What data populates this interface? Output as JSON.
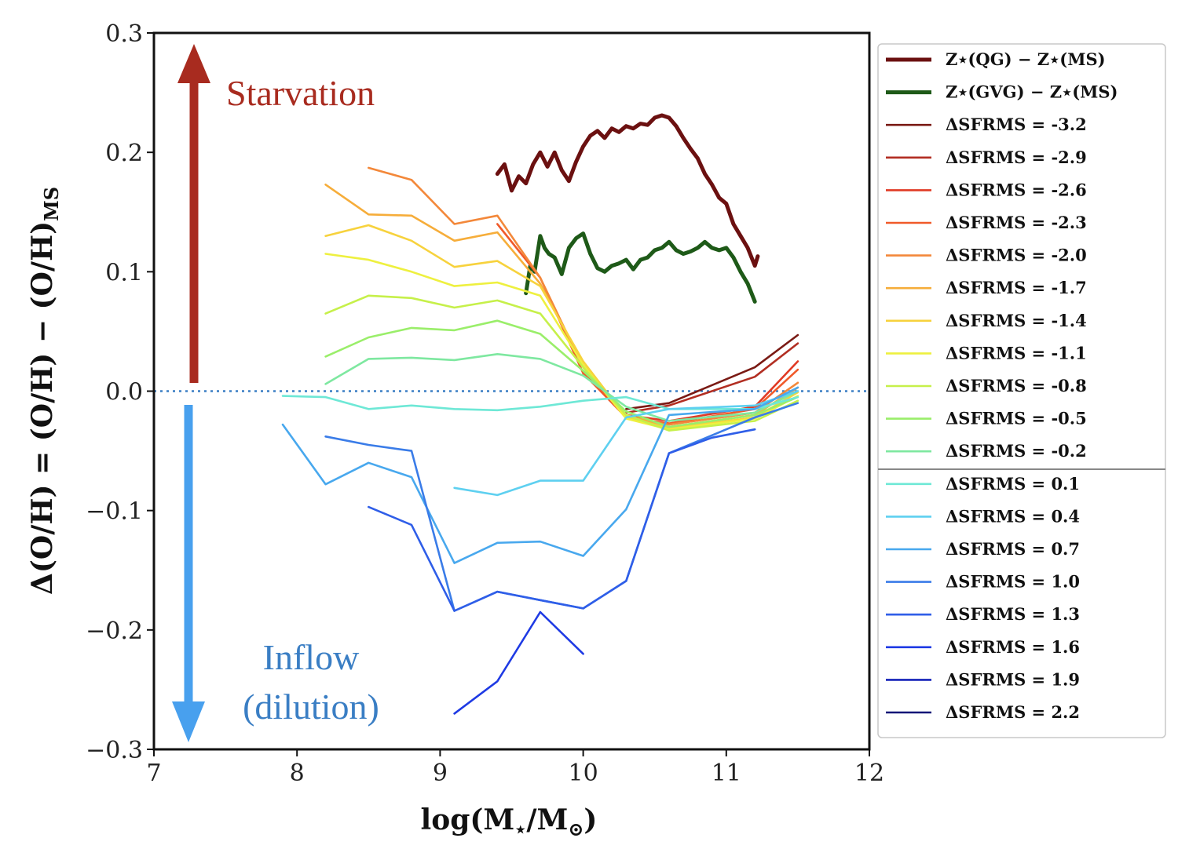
{
  "chart_data": {
    "type": "line",
    "xlabel": "log(M⋆/M⊙)",
    "ylabel": "Δ(O/H) = (O/H) − (O/H)MS",
    "xlim": [
      7,
      12
    ],
    "ylim": [
      -0.3,
      0.3
    ],
    "xticks": [
      "7",
      "8",
      "9",
      "10",
      "11",
      "12"
    ],
    "yticks": [
      "−0.3",
      "−0.2",
      "−0.1",
      "0.0",
      "0.1",
      "0.2",
      "0.3"
    ],
    "reference_line": {
      "y": 0.0,
      "style": "dotted",
      "color": "#3a7ec4"
    },
    "annotations": [
      {
        "text": "Starvation",
        "color": "#a82b1f",
        "arrow": "up"
      },
      {
        "text": "Inflow",
        "color": "#3a7ec4",
        "arrow": "down"
      },
      {
        "text": "(dilution)",
        "color": "#3a7ec4"
      }
    ],
    "legend_position": "outside-right",
    "series": [
      {
        "name": "Z⋆(QG) − Z⋆(MS)",
        "color": "#6b1010",
        "width": 5,
        "x": [
          9.4,
          9.45,
          9.5,
          9.55,
          9.6,
          9.65,
          9.7,
          9.75,
          9.8,
          9.85,
          9.9,
          9.95,
          10.0,
          10.05,
          10.1,
          10.15,
          10.2,
          10.25,
          10.3,
          10.35,
          10.4,
          10.45,
          10.5,
          10.55,
          10.6,
          10.65,
          10.7,
          10.75,
          10.8,
          10.85,
          10.9,
          10.95,
          11.0,
          11.05,
          11.1,
          11.15,
          11.2,
          11.22
        ],
        "y": [
          0.182,
          0.19,
          0.168,
          0.18,
          0.174,
          0.19,
          0.2,
          0.188,
          0.2,
          0.185,
          0.176,
          0.192,
          0.205,
          0.214,
          0.218,
          0.212,
          0.22,
          0.217,
          0.222,
          0.22,
          0.224,
          0.223,
          0.229,
          0.231,
          0.229,
          0.222,
          0.212,
          0.203,
          0.195,
          0.182,
          0.173,
          0.162,
          0.157,
          0.14,
          0.13,
          0.12,
          0.105,
          0.113
        ]
      },
      {
        "name": "Z⋆(GVG) − Z⋆(MS)",
        "color": "#1e5a18",
        "width": 5,
        "x": [
          9.6,
          9.63,
          9.66,
          9.7,
          9.73,
          9.76,
          9.8,
          9.85,
          9.9,
          9.95,
          10.0,
          10.05,
          10.1,
          10.15,
          10.2,
          10.25,
          10.3,
          10.35,
          10.4,
          10.45,
          10.5,
          10.55,
          10.6,
          10.65,
          10.7,
          10.75,
          10.8,
          10.85,
          10.9,
          10.95,
          11.0,
          11.05,
          11.1,
          11.15,
          11.2
        ],
        "y": [
          0.082,
          0.105,
          0.1,
          0.13,
          0.12,
          0.115,
          0.112,
          0.098,
          0.12,
          0.128,
          0.132,
          0.115,
          0.103,
          0.1,
          0.105,
          0.107,
          0.11,
          0.102,
          0.11,
          0.112,
          0.118,
          0.12,
          0.125,
          0.118,
          0.115,
          0.117,
          0.12,
          0.125,
          0.12,
          0.118,
          0.12,
          0.112,
          0.1,
          0.09,
          0.075
        ]
      },
      {
        "name": "ΔSFRMS = -3.2",
        "color": "#7a1a14",
        "x": [
          10.3,
          10.6,
          11.2,
          11.5
        ],
        "y": [
          -0.015,
          -0.01,
          0.02,
          0.047
        ]
      },
      {
        "name": "ΔSFRMS = -2.9",
        "color": "#b22e22",
        "x": [
          10.3,
          10.6,
          11.2,
          11.5
        ],
        "y": [
          -0.018,
          -0.012,
          0.012,
          0.04
        ]
      },
      {
        "name": "ΔSFRMS = -2.6",
        "color": "#e03a25",
        "x": [
          10.0,
          10.3,
          10.6,
          11.2,
          11.5
        ],
        "y": [
          0.015,
          -0.02,
          -0.025,
          -0.013,
          0.025
        ]
      },
      {
        "name": "ΔSFRMS = -2.3",
        "color": "#f05a2a",
        "x": [
          9.4,
          9.7,
          10.0,
          10.3,
          10.6,
          11.2,
          11.5
        ],
        "y": [
          0.14,
          0.095,
          0.015,
          -0.022,
          -0.027,
          -0.015,
          0.018
        ]
      },
      {
        "name": "ΔSFRMS = -2.0",
        "color": "#f3883a",
        "x": [
          8.5,
          8.8,
          9.1,
          9.4,
          9.7,
          10.0,
          10.3,
          10.6,
          11.2,
          11.5
        ],
        "y": [
          0.187,
          0.177,
          0.14,
          0.147,
          0.095,
          0.02,
          -0.022,
          -0.028,
          -0.018,
          0.007
        ]
      },
      {
        "name": "ΔSFRMS = -1.7",
        "color": "#f6ad3a",
        "x": [
          8.2,
          8.5,
          8.8,
          9.1,
          9.4,
          9.7,
          10.0,
          10.3,
          10.6,
          11.2,
          11.5
        ],
        "y": [
          0.173,
          0.148,
          0.147,
          0.126,
          0.133,
          0.09,
          0.022,
          -0.02,
          -0.03,
          -0.02,
          0.003
        ]
      },
      {
        "name": "ΔSFRMS = -1.4",
        "color": "#f7d23d",
        "x": [
          8.2,
          8.5,
          8.8,
          9.1,
          9.4,
          9.7,
          10.0,
          10.3,
          10.6,
          11.2,
          11.5
        ],
        "y": [
          0.13,
          0.139,
          0.126,
          0.104,
          0.109,
          0.088,
          0.025,
          -0.022,
          -0.031,
          -0.022,
          -0.001
        ]
      },
      {
        "name": "ΔSFRMS = -1.1",
        "color": "#eef03f",
        "x": [
          8.2,
          8.5,
          8.8,
          9.1,
          9.4,
          9.7,
          10.0,
          10.3,
          10.6,
          11.2,
          11.5
        ],
        "y": [
          0.115,
          0.11,
          0.1,
          0.088,
          0.091,
          0.08,
          0.022,
          -0.023,
          -0.032,
          -0.023,
          -0.004
        ]
      },
      {
        "name": "ΔSFRMS = -0.8",
        "color": "#c6f04a",
        "x": [
          8.2,
          8.5,
          8.8,
          9.1,
          9.4,
          9.7,
          10.0,
          10.3,
          10.6,
          11.2,
          11.5
        ],
        "y": [
          0.065,
          0.08,
          0.078,
          0.07,
          0.076,
          0.065,
          0.02,
          -0.02,
          -0.033,
          -0.025,
          -0.008
        ]
      },
      {
        "name": "ΔSFRMS = -0.5",
        "color": "#9aee6a",
        "x": [
          8.2,
          8.5,
          8.8,
          9.1,
          9.4,
          9.7,
          10.0,
          10.3,
          10.6,
          11.2,
          11.5
        ],
        "y": [
          0.029,
          0.045,
          0.053,
          0.051,
          0.059,
          0.048,
          0.017,
          -0.017,
          -0.03,
          -0.02,
          -0.005
        ]
      },
      {
        "name": "ΔSFRMS = -0.2",
        "color": "#7ee8a0",
        "x": [
          8.2,
          8.5,
          8.8,
          9.1,
          9.4,
          9.7,
          10.0,
          10.3,
          10.6,
          11.2,
          11.5
        ],
        "y": [
          0.006,
          0.027,
          0.028,
          0.026,
          0.031,
          0.027,
          0.013,
          -0.013,
          -0.025,
          -0.018,
          0.0
        ]
      },
      {
        "name": "ΔSFRMS = 0.1",
        "color": "#6ee8d6",
        "x": [
          7.9,
          8.2,
          8.5,
          8.8,
          9.1,
          9.4,
          9.7,
          10.0,
          10.3,
          10.6,
          11.2,
          11.5
        ],
        "y": [
          -0.004,
          -0.005,
          -0.015,
          -0.012,
          -0.015,
          -0.016,
          -0.013,
          -0.008,
          -0.005,
          -0.015,
          -0.015,
          -0.005
        ]
      },
      {
        "name": "ΔSFRMS = 0.4",
        "color": "#5ed0f0",
        "x": [
          9.1,
          9.4,
          9.7,
          10.0,
          10.3,
          10.6,
          11.2,
          11.5
        ],
        "y": [
          -0.081,
          -0.087,
          -0.075,
          -0.075,
          -0.022,
          -0.015,
          -0.012,
          0.0
        ]
      },
      {
        "name": "ΔSFRMS = 0.7",
        "color": "#48a8ee",
        "x": [
          7.9,
          8.2,
          8.5,
          8.8,
          9.1,
          9.4,
          9.7,
          10.0,
          10.3,
          10.6,
          11.2,
          11.5
        ],
        "y": [
          -0.028,
          -0.078,
          -0.06,
          -0.072,
          -0.144,
          -0.127,
          -0.126,
          -0.138,
          -0.099,
          -0.02,
          -0.015,
          0.003
        ]
      },
      {
        "name": "ΔSFRMS = 1.0",
        "color": "#3a7ce8",
        "x": [
          8.2,
          8.5,
          8.8,
          9.1,
          9.4,
          9.7,
          10.0,
          10.3,
          10.6,
          11.2,
          11.5
        ],
        "y": [
          -0.038,
          -0.045,
          -0.05,
          -0.184,
          -0.168,
          -0.175,
          -0.182,
          -0.159,
          -0.052,
          -0.022,
          -0.01
        ]
      },
      {
        "name": "ΔSFRMS = 1.3",
        "color": "#2f5ee8",
        "x": [
          8.5,
          8.8,
          9.1,
          9.4,
          9.7,
          10.0,
          10.3,
          10.6,
          10.9,
          11.2
        ],
        "y": [
          -0.097,
          -0.112,
          -0.184,
          -0.168,
          -0.175,
          -0.182,
          -0.159,
          -0.052,
          -0.039,
          -0.032
        ]
      },
      {
        "name": "ΔSFRMS = 1.6",
        "color": "#1e3ae4",
        "x": [
          9.1,
          9.4,
          9.7,
          10.0
        ],
        "y": [
          -0.27,
          -0.243,
          -0.185,
          -0.22
        ]
      },
      {
        "name": "ΔSFRMS = 1.9",
        "color": "#1522b8",
        "x": [],
        "y": []
      },
      {
        "name": "ΔSFRMS = 2.2",
        "color": "#0d1278",
        "x": [],
        "y": []
      }
    ]
  }
}
